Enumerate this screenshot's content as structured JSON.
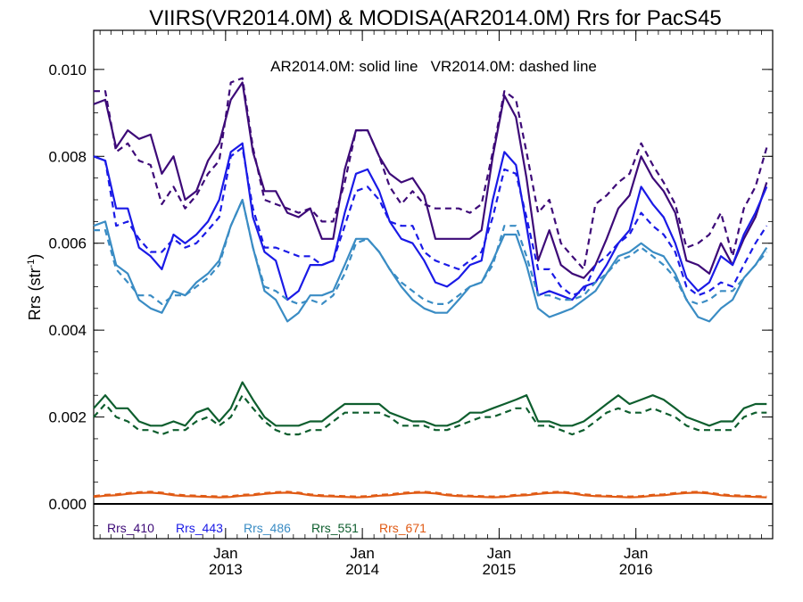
{
  "chart_data": {
    "type": "line",
    "title": "VIIRS(VR2014.0M) & MODISA(AR2014.0M)  Rrs for PacS45",
    "annotation": "AR2014.0M: solid line   VR2014.0M: dashed line",
    "ylabel": "Rrs (str",
    "ylabel_sup": "-1",
    "ylabel_close": ")",
    "ylim": [
      -0.0008,
      0.0109
    ],
    "xlim": [
      "2012-01-15",
      "2016-12-31"
    ],
    "yticks": [
      "0.000",
      "0.002",
      "0.004",
      "0.006",
      "0.008",
      "0.010"
    ],
    "ytick_values": [
      0.0,
      0.002,
      0.004,
      0.006,
      0.008,
      0.01
    ],
    "xticks": [
      {
        "month": "Jan",
        "year": "2013",
        "date": "2013-01-01"
      },
      {
        "month": "Jan",
        "year": "2014",
        "date": "2014-01-01"
      },
      {
        "month": "Jan",
        "year": "2015",
        "date": "2015-01-01"
      },
      {
        "month": "Jan",
        "year": "2016",
        "date": "2016-01-01"
      }
    ],
    "zero_line": 0.0,
    "x": [
      "2012-01-15",
      "2012-02-15",
      "2012-03-15",
      "2012-04-15",
      "2012-05-15",
      "2012-06-15",
      "2012-07-15",
      "2012-08-15",
      "2012-09-15",
      "2012-10-15",
      "2012-11-15",
      "2012-12-15",
      "2013-01-15",
      "2013-02-15",
      "2013-03-15",
      "2013-04-15",
      "2013-05-15",
      "2013-06-15",
      "2013-07-15",
      "2013-08-15",
      "2013-09-15",
      "2013-10-15",
      "2013-11-15",
      "2013-12-15",
      "2014-01-15",
      "2014-02-15",
      "2014-03-15",
      "2014-04-15",
      "2014-05-15",
      "2014-06-15",
      "2014-07-15",
      "2014-08-15",
      "2014-09-15",
      "2014-10-15",
      "2014-11-15",
      "2014-12-15",
      "2015-01-15",
      "2015-02-15",
      "2015-03-15",
      "2015-04-15",
      "2015-05-15",
      "2015-06-15",
      "2015-07-15",
      "2015-08-15",
      "2015-09-15",
      "2015-10-15",
      "2015-11-15",
      "2015-12-15",
      "2016-01-15",
      "2016-02-15",
      "2016-03-15",
      "2016-04-15",
      "2016-05-15",
      "2016-06-15",
      "2016-07-15",
      "2016-08-15",
      "2016-09-15",
      "2016-10-15",
      "2016-11-15",
      "2016-12-15"
    ],
    "series": [
      {
        "name": "Rrs_410",
        "color": "#3d0a78",
        "style": "solid",
        "values": [
          0.0092,
          0.0093,
          0.0082,
          0.0086,
          0.0084,
          0.0085,
          0.0076,
          0.008,
          0.007,
          0.0072,
          0.0079,
          0.0083,
          0.0093,
          0.0097,
          0.0081,
          0.0072,
          0.0072,
          0.0067,
          0.0066,
          0.0068,
          0.0061,
          0.0061,
          0.0077,
          0.0086,
          0.0086,
          0.008,
          0.0076,
          0.0074,
          0.0075,
          0.0071,
          0.0061,
          0.0061,
          0.0061,
          0.0061,
          0.0063,
          0.008,
          0.0094,
          0.0089,
          0.0075,
          0.0056,
          0.0063,
          0.0055,
          0.0053,
          0.0052,
          0.0055,
          0.0061,
          0.0068,
          0.0071,
          0.008,
          0.0075,
          0.0072,
          0.0067,
          0.0056,
          0.0055,
          0.0053,
          0.006,
          0.0055,
          0.0061,
          0.0066,
          0.0074
        ]
      },
      {
        "name": "Rrs_410",
        "color": "#3d0a78",
        "style": "dashed",
        "values": [
          0.0095,
          0.0095,
          0.0081,
          0.0083,
          0.0079,
          0.0078,
          0.0069,
          0.0073,
          0.0068,
          0.0071,
          0.0076,
          0.0079,
          0.0097,
          0.0098,
          0.0082,
          0.007,
          0.0069,
          0.0068,
          0.0067,
          0.0068,
          0.0065,
          0.0065,
          0.0074,
          0.0086,
          0.0086,
          0.008,
          0.0073,
          0.0069,
          0.0072,
          0.0069,
          0.0068,
          0.0068,
          0.0068,
          0.0067,
          0.0069,
          0.0081,
          0.0095,
          0.0093,
          0.0081,
          0.0067,
          0.007,
          0.006,
          0.0057,
          0.0054,
          0.0069,
          0.0071,
          0.0074,
          0.0076,
          0.0083,
          0.0078,
          0.0074,
          0.0069,
          0.0059,
          0.006,
          0.0062,
          0.0067,
          0.0057,
          0.0068,
          0.0073,
          0.0082
        ]
      },
      {
        "name": "Rrs_443",
        "color": "#1a1ae6",
        "style": "solid",
        "values": [
          0.008,
          0.0079,
          0.0068,
          0.0068,
          0.0059,
          0.0057,
          0.0054,
          0.0062,
          0.006,
          0.0062,
          0.0065,
          0.007,
          0.0081,
          0.0083,
          0.0066,
          0.0058,
          0.0056,
          0.0047,
          0.0049,
          0.0055,
          0.0055,
          0.0056,
          0.0067,
          0.0076,
          0.0077,
          0.0072,
          0.0065,
          0.0061,
          0.006,
          0.0056,
          0.0051,
          0.005,
          0.0052,
          0.0055,
          0.0056,
          0.007,
          0.0081,
          0.0078,
          0.0064,
          0.0048,
          0.0049,
          0.0048,
          0.0047,
          0.005,
          0.0051,
          0.0055,
          0.006,
          0.0063,
          0.0073,
          0.0069,
          0.0066,
          0.006,
          0.0052,
          0.0049,
          0.0051,
          0.0057,
          0.0055,
          0.0062,
          0.0067,
          0.0073
        ]
      },
      {
        "name": "Rrs_443",
        "color": "#1a1ae6",
        "style": "dashed",
        "values": [
          0.008,
          0.0079,
          0.0064,
          0.0065,
          0.0061,
          0.0058,
          0.0058,
          0.0061,
          0.0059,
          0.006,
          0.0063,
          0.0066,
          0.008,
          0.0082,
          0.0068,
          0.0059,
          0.0059,
          0.0058,
          0.0057,
          0.0057,
          0.0055,
          0.0056,
          0.0064,
          0.0072,
          0.0073,
          0.007,
          0.0065,
          0.0064,
          0.0064,
          0.0058,
          0.0056,
          0.0055,
          0.0054,
          0.0056,
          0.0058,
          0.0066,
          0.0077,
          0.0076,
          0.0066,
          0.0054,
          0.0054,
          0.005,
          0.0048,
          0.0049,
          0.0055,
          0.0057,
          0.006,
          0.0062,
          0.0067,
          0.0064,
          0.0062,
          0.0058,
          0.005,
          0.0048,
          0.0049,
          0.0051,
          0.005,
          0.0055,
          0.006,
          0.0064
        ]
      },
      {
        "name": "Rrs_486",
        "color": "#3a8cc4",
        "style": "solid",
        "values": [
          0.0064,
          0.0065,
          0.0055,
          0.0053,
          0.0047,
          0.0045,
          0.0044,
          0.0049,
          0.0048,
          0.0051,
          0.0053,
          0.0056,
          0.0064,
          0.007,
          0.0059,
          0.0049,
          0.0047,
          0.0042,
          0.0044,
          0.0048,
          0.0048,
          0.0049,
          0.0055,
          0.0061,
          0.0061,
          0.0058,
          0.0054,
          0.005,
          0.0047,
          0.0045,
          0.0044,
          0.0044,
          0.0047,
          0.005,
          0.0051,
          0.0056,
          0.0062,
          0.0062,
          0.0055,
          0.0045,
          0.0043,
          0.0044,
          0.0045,
          0.0047,
          0.0049,
          0.0053,
          0.0057,
          0.0058,
          0.006,
          0.0058,
          0.0057,
          0.0053,
          0.0047,
          0.0043,
          0.0042,
          0.0045,
          0.0047,
          0.0052,
          0.0055,
          0.0059
        ]
      },
      {
        "name": "Rrs_486",
        "color": "#3a8cc4",
        "style": "dashed",
        "values": [
          0.0063,
          0.0063,
          0.0054,
          0.0051,
          0.0048,
          0.0048,
          0.0046,
          0.0048,
          0.0048,
          0.005,
          0.0052,
          0.0055,
          0.0064,
          0.007,
          0.0059,
          0.005,
          0.0049,
          0.0047,
          0.0046,
          0.0047,
          0.0046,
          0.0048,
          0.0053,
          0.006,
          0.0061,
          0.0058,
          0.0054,
          0.0051,
          0.0049,
          0.0047,
          0.0046,
          0.0046,
          0.0048,
          0.005,
          0.0051,
          0.0055,
          0.0064,
          0.0064,
          0.0057,
          0.0048,
          0.0048,
          0.0047,
          0.0047,
          0.0048,
          0.0051,
          0.0053,
          0.0056,
          0.0057,
          0.0059,
          0.0057,
          0.0055,
          0.0052,
          0.0047,
          0.0046,
          0.0047,
          0.0049,
          0.0049,
          0.0052,
          0.0055,
          0.0058
        ]
      },
      {
        "name": "Rrs_551",
        "color": "#0e5e2e",
        "style": "solid",
        "values": [
          0.0022,
          0.0025,
          0.0022,
          0.0022,
          0.0019,
          0.0018,
          0.0018,
          0.0019,
          0.0018,
          0.0021,
          0.0022,
          0.0019,
          0.0022,
          0.0028,
          0.0024,
          0.002,
          0.0018,
          0.0018,
          0.0018,
          0.0019,
          0.0019,
          0.0021,
          0.0023,
          0.0023,
          0.0023,
          0.0023,
          0.0021,
          0.002,
          0.0019,
          0.0019,
          0.0018,
          0.0018,
          0.0019,
          0.0021,
          0.0021,
          0.0022,
          0.0023,
          0.0024,
          0.0025,
          0.0019,
          0.0019,
          0.0018,
          0.0018,
          0.0019,
          0.0021,
          0.0023,
          0.0025,
          0.0023,
          0.0024,
          0.0025,
          0.0024,
          0.0022,
          0.002,
          0.0019,
          0.0018,
          0.0019,
          0.0019,
          0.0022,
          0.0023,
          0.0023
        ]
      },
      {
        "name": "Rrs_551",
        "color": "#0e5e2e",
        "style": "dashed",
        "values": [
          0.002,
          0.0023,
          0.002,
          0.0019,
          0.0017,
          0.0017,
          0.0016,
          0.0017,
          0.0017,
          0.0019,
          0.002,
          0.0018,
          0.002,
          0.0025,
          0.0022,
          0.0019,
          0.0017,
          0.0016,
          0.0016,
          0.0017,
          0.0017,
          0.0019,
          0.0021,
          0.0021,
          0.0021,
          0.0021,
          0.002,
          0.0018,
          0.0018,
          0.0018,
          0.0017,
          0.0017,
          0.0018,
          0.0019,
          0.002,
          0.002,
          0.0021,
          0.0022,
          0.0022,
          0.0018,
          0.0018,
          0.0017,
          0.0016,
          0.0017,
          0.0019,
          0.0021,
          0.0022,
          0.0021,
          0.0021,
          0.0022,
          0.0021,
          0.002,
          0.0018,
          0.0017,
          0.0017,
          0.0017,
          0.0017,
          0.002,
          0.0021,
          0.0021
        ]
      },
      {
        "name": "Rrs_671",
        "color": "#e05a14",
        "style": "solid",
        "values": [
          0.00016,
          0.00019,
          0.0002,
          0.00023,
          0.00025,
          0.00026,
          0.00024,
          0.0002,
          0.00018,
          0.00017,
          0.00016,
          0.00015,
          0.00016,
          0.00019,
          0.0002,
          0.00023,
          0.00025,
          0.00026,
          0.00024,
          0.0002,
          0.00018,
          0.00017,
          0.00016,
          0.00015,
          0.00016,
          0.00019,
          0.0002,
          0.00023,
          0.00025,
          0.00026,
          0.00024,
          0.0002,
          0.00018,
          0.00017,
          0.00016,
          0.00015,
          0.00016,
          0.00019,
          0.0002,
          0.00023,
          0.00025,
          0.00026,
          0.00024,
          0.0002,
          0.00018,
          0.00017,
          0.00016,
          0.00015,
          0.00016,
          0.00019,
          0.0002,
          0.00023,
          0.00025,
          0.00026,
          0.00024,
          0.0002,
          0.00018,
          0.00017,
          0.00016,
          0.00015
        ]
      },
      {
        "name": "Rrs_671",
        "color": "#e05a14",
        "style": "dashed",
        "values": [
          0.00018,
          0.00021,
          0.00022,
          0.00025,
          0.00027,
          0.00028,
          0.00026,
          0.00022,
          0.0002,
          0.00019,
          0.00018,
          0.00017,
          0.00018,
          0.00021,
          0.00022,
          0.00025,
          0.00027,
          0.00028,
          0.00026,
          0.00022,
          0.0002,
          0.00019,
          0.00018,
          0.00017,
          0.00018,
          0.00021,
          0.00022,
          0.00025,
          0.00027,
          0.00028,
          0.00026,
          0.00022,
          0.0002,
          0.00019,
          0.00018,
          0.00017,
          0.00018,
          0.00021,
          0.00022,
          0.00025,
          0.00027,
          0.00028,
          0.00026,
          0.00022,
          0.0002,
          0.00019,
          0.00018,
          0.00017,
          0.00018,
          0.00021,
          0.00022,
          0.00025,
          0.00027,
          0.00028,
          0.00026,
          0.00022,
          0.0002,
          0.00019,
          0.00018,
          0.00017
        ]
      }
    ],
    "legend": [
      {
        "label": "Rrs_410",
        "color": "#3d0a78"
      },
      {
        "label": "Rrs_443",
        "color": "#1a1ae6"
      },
      {
        "label": "Rrs_486",
        "color": "#3a8cc4"
      },
      {
        "label": "Rrs_551",
        "color": "#0e5e2e"
      },
      {
        "label": "Rrs_671",
        "color": "#e05a14"
      }
    ],
    "legend_position": "bottom-left",
    "grid": false
  }
}
